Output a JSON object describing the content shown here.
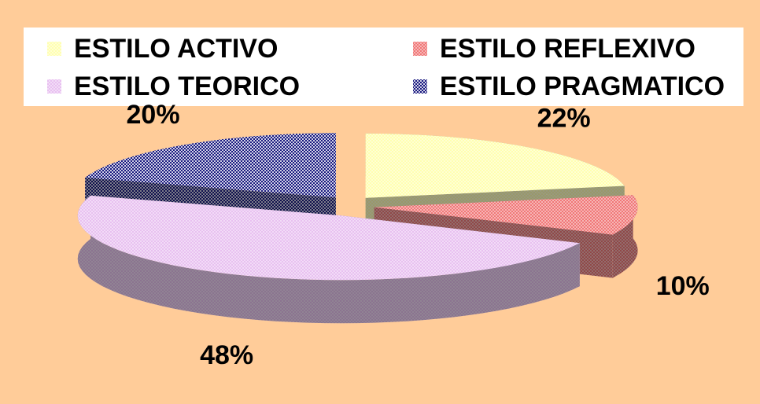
{
  "chart_data": {
    "type": "pie",
    "categories": [
      "ESTILO ACTIVO",
      "ESTILO REFLEXIVO",
      "ESTILO TEORICO",
      "ESTILO PRAGMATICO"
    ],
    "values": [
      22,
      10,
      48,
      20
    ],
    "value_labels": [
      "22%",
      "10%",
      "48%",
      "20%"
    ],
    "colors": [
      "#FFFFB0",
      "#F07878",
      "#E8C0F0",
      "#1A1A80"
    ],
    "legend": "top"
  }
}
